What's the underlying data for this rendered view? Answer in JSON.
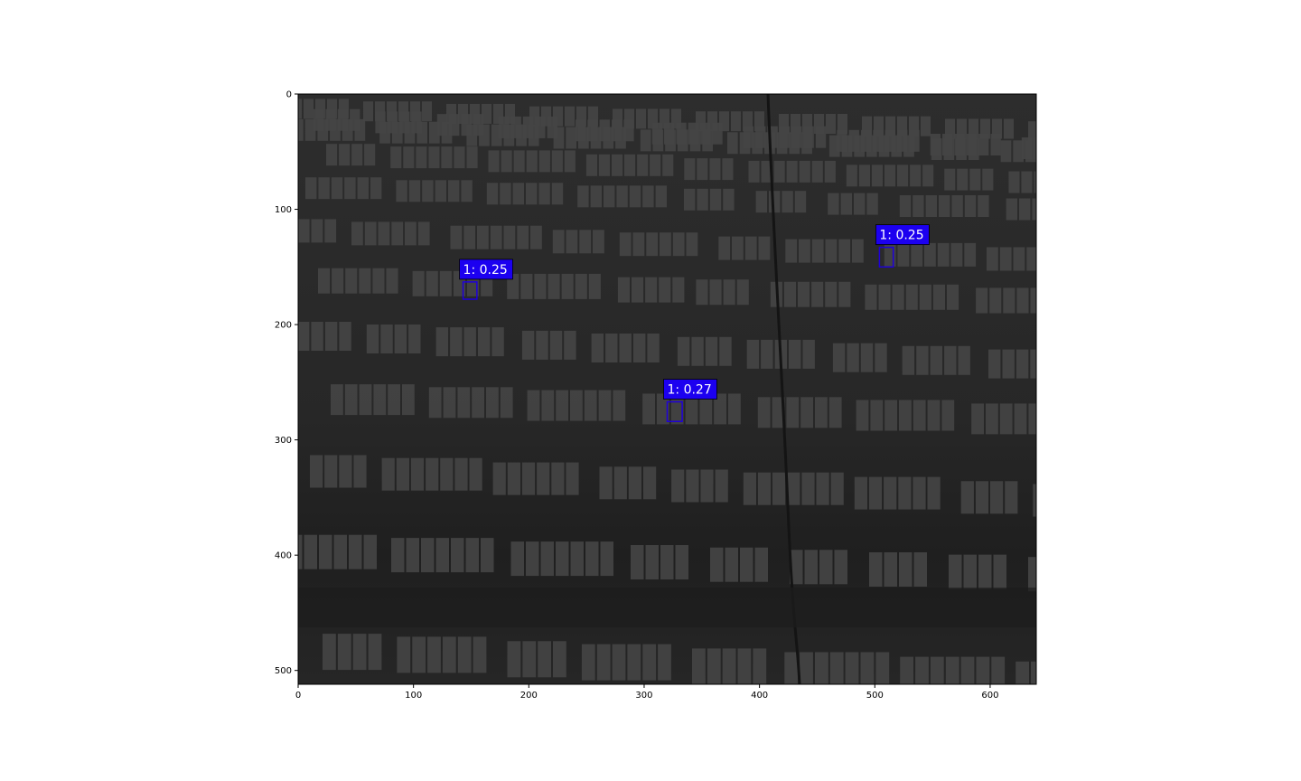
{
  "image": {
    "description_kind": "thermal-aerial-grayscale",
    "width": 640,
    "height": 512
  },
  "axes": {
    "x_ticks": [
      {
        "value": 0,
        "label": "0"
      },
      {
        "value": 100,
        "label": "100"
      },
      {
        "value": 200,
        "label": "200"
      },
      {
        "value": 300,
        "label": "300"
      },
      {
        "value": 400,
        "label": "400"
      },
      {
        "value": 500,
        "label": "500"
      },
      {
        "value": 600,
        "label": "600"
      }
    ],
    "y_ticks": [
      {
        "value": 0,
        "label": "0"
      },
      {
        "value": 100,
        "label": "100"
      },
      {
        "value": 200,
        "label": "200"
      },
      {
        "value": 300,
        "label": "300"
      },
      {
        "value": 400,
        "label": "400"
      },
      {
        "value": 500,
        "label": "500"
      }
    ]
  },
  "detections": [
    {
      "label": "1: 0.25",
      "x0": 143,
      "y0": 163,
      "x1": 155,
      "y1": 178
    },
    {
      "label": "1: 0.25",
      "x0": 504,
      "y0": 133,
      "x1": 516,
      "y1": 150
    },
    {
      "label": "1: 0.27",
      "x0": 320,
      "y0": 267,
      "x1": 333,
      "y1": 284
    }
  ],
  "colors": {
    "box": "#1f00d8",
    "label_bg": "#1c00f0",
    "image_base": "#2a2a2a",
    "panel": "#454545",
    "panel_gap": "#353535"
  }
}
